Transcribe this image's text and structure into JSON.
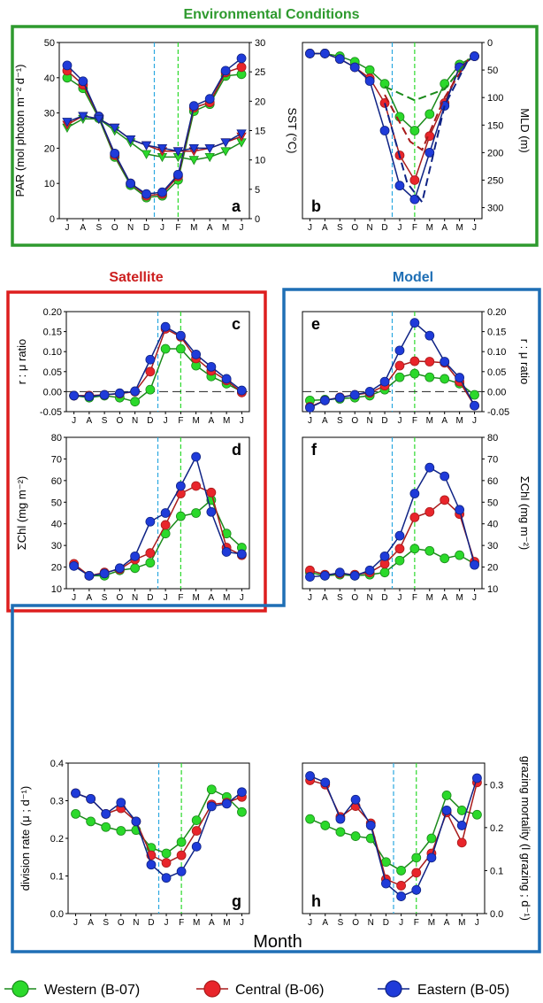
{
  "section_titles": {
    "environmental": "Environmental Conditions",
    "satellite": "Satellite",
    "model": "Model"
  },
  "month_labels": [
    "J",
    "A",
    "S",
    "O",
    "N",
    "D",
    "J",
    "F",
    "M",
    "A",
    "M",
    "J"
  ],
  "x_axis_label": "Month",
  "legend": [
    {
      "label": "Western (B-07)",
      "color": "#2bd92b"
    },
    {
      "label": "Central (B-06)",
      "color": "#e8252b"
    },
    {
      "label": "Eastern (B-05)",
      "color": "#1f3bd9"
    }
  ],
  "colors": {
    "western": "#2bd92b",
    "central": "#e8252b",
    "eastern": "#1f3bd9",
    "western_line": "#1a8a1a",
    "central_line": "#a81a1a",
    "eastern_line": "#0f2385",
    "environmental_frame": "#2e9a2e",
    "satellite_frame": "#dd1e1e",
    "model_frame": "#1f6fb5",
    "dec_line": "#2aa8e0",
    "feb_line": "#2bd92b"
  },
  "chart_data": [
    {
      "panel": "a",
      "type": "line",
      "ylabel_left": "PAR (mol photon m⁻² d⁻¹)",
      "ylabel_right": "SST (°C)",
      "ylim": [
        0,
        50
      ],
      "yticks": [
        0,
        10,
        20,
        30,
        40,
        50
      ],
      "ylim_right": [
        0,
        30
      ],
      "yticks_right": [
        0,
        5,
        10,
        15,
        20,
        25,
        30
      ],
      "x": [
        1,
        2,
        3,
        4,
        5,
        6,
        7,
        8,
        9,
        10,
        11,
        12
      ],
      "series": [
        {
          "name": "Western (B-07)",
          "quantity": "PAR",
          "values": [
            40,
            37,
            28.5,
            17.5,
            9.5,
            6,
            6.5,
            11,
            30.5,
            32.5,
            40.5,
            41
          ]
        },
        {
          "name": "Central (B-06)",
          "quantity": "PAR",
          "values": [
            42,
            38,
            29,
            18,
            10,
            6.5,
            7,
            12,
            31.5,
            33,
            41.5,
            43
          ]
        },
        {
          "name": "Eastern (B-05)",
          "quantity": "PAR",
          "values": [
            43.5,
            39,
            29,
            18.5,
            10,
            7,
            7.5,
            12.5,
            32,
            34,
            42,
            45.5
          ]
        },
        {
          "name": "Western (B-07)",
          "quantity": "SST",
          "values": [
            15.5,
            17,
            17,
            15,
            13,
            11,
            10.5,
            10.5,
            10,
            10.5,
            11.5,
            13
          ]
        },
        {
          "name": "Central (B-06)",
          "quantity": "SST",
          "values": [
            16,
            17.5,
            17,
            15.5,
            13.5,
            12.5,
            11.5,
            11.5,
            11.5,
            12,
            13,
            14
          ]
        },
        {
          "name": "Eastern (B-05)",
          "quantity": "SST",
          "values": [
            16.5,
            17.5,
            17,
            15.5,
            13.5,
            12.5,
            12,
            11.5,
            12,
            12,
            13,
            14.5
          ]
        }
      ]
    },
    {
      "panel": "b",
      "type": "line",
      "ylabel_right": "MLD (m)",
      "ylim": [
        0,
        320
      ],
      "inverted": true,
      "yticks_right": [
        0,
        50,
        100,
        150,
        200,
        250,
        300
      ],
      "x": [
        1,
        2,
        3,
        4,
        5,
        6,
        7,
        8,
        9,
        10,
        11,
        12
      ],
      "series": [
        {
          "name": "Western (B-07)",
          "values": [
            20,
            20,
            25,
            35,
            50,
            75,
            135,
            160,
            130,
            75,
            40,
            25
          ]
        },
        {
          "name": "Central (B-06)",
          "values": [
            20,
            20,
            30,
            45,
            65,
            110,
            205,
            250,
            170,
            110,
            45,
            25
          ]
        },
        {
          "name": "Eastern (B-05)",
          "values": [
            20,
            20,
            30,
            45,
            70,
            160,
            260,
            285,
            200,
            115,
            45,
            25
          ]
        }
      ],
      "dashed_series": [
        {
          "name": "Western (B-07)",
          "x": [
            6,
            8,
            10,
            11.6
          ],
          "values": [
            80,
            105,
            85,
            30
          ]
        },
        {
          "name": "Central (B-06)",
          "x": [
            6,
            7.7,
            8.5,
            10,
            11.6
          ],
          "values": [
            95,
            180,
            195,
            100,
            30
          ]
        },
        {
          "name": "Eastern (B-05)",
          "x": [
            6,
            7.5,
            8.5,
            10,
            11.6
          ],
          "values": [
            110,
            255,
            290,
            115,
            30
          ]
        }
      ]
    },
    {
      "panel": "c",
      "type": "line",
      "ylabel_left": "r : μ ratio",
      "ylim": [
        -0.05,
        0.2
      ],
      "yticks": [
        -0.05,
        0,
        0.05,
        0.1,
        0.15,
        0.2
      ],
      "x": [
        1,
        2,
        3,
        4,
        5,
        6,
        7,
        8,
        9,
        10,
        11,
        12
      ],
      "series": [
        {
          "name": "Western (B-07)",
          "values": [
            -0.01,
            -0.015,
            -0.01,
            -0.015,
            -0.025,
            0.005,
            0.107,
            0.107,
            0.065,
            0.038,
            0.02,
            0.0
          ]
        },
        {
          "name": "Central (B-06)",
          "values": [
            -0.01,
            -0.01,
            -0.008,
            -0.005,
            0.0,
            0.05,
            0.157,
            0.137,
            0.083,
            0.052,
            0.028,
            -0.002
          ]
        },
        {
          "name": "Eastern (B-05)",
          "values": [
            -0.01,
            -0.012,
            -0.008,
            -0.004,
            0.001,
            0.08,
            0.162,
            0.14,
            0.093,
            0.062,
            0.032,
            0.003
          ]
        }
      ]
    },
    {
      "panel": "d",
      "type": "line",
      "ylabel_left": "ΣChl (mg m⁻²)",
      "ylim": [
        10,
        80
      ],
      "yticks": [
        10,
        20,
        30,
        40,
        50,
        60,
        70,
        80
      ],
      "x": [
        1,
        2,
        3,
        4,
        5,
        6,
        7,
        8,
        9,
        10,
        11,
        12
      ],
      "series": [
        {
          "name": "Western (B-07)",
          "values": [
            21,
            16,
            16,
            18.5,
            19.5,
            22,
            35.5,
            43.5,
            45,
            51,
            35.5,
            29
          ]
        },
        {
          "name": "Central (B-06)",
          "values": [
            21.5,
            16,
            17.5,
            19,
            23.5,
            26.5,
            39.5,
            54,
            57.5,
            54.5,
            29,
            25.5
          ]
        },
        {
          "name": "Eastern (B-05)",
          "values": [
            20.5,
            16,
            17,
            19.5,
            25,
            41,
            45,
            57.5,
            71,
            45.5,
            27,
            26
          ]
        }
      ]
    },
    {
      "panel": "e",
      "type": "line",
      "ylabel_right": "r : μ ratio",
      "ylim": [
        -0.05,
        0.2
      ],
      "yticks_right": [
        -0.05,
        0,
        0.05,
        0.1,
        0.15,
        0.2
      ],
      "x": [
        1,
        2,
        3,
        4,
        5,
        6,
        7,
        8,
        9,
        10,
        11,
        12
      ],
      "series": [
        {
          "name": "Western (B-07)",
          "values": [
            -0.022,
            -0.02,
            -0.018,
            -0.015,
            -0.01,
            0.005,
            0.036,
            0.045,
            0.036,
            0.032,
            0.02,
            -0.008
          ]
        },
        {
          "name": "Central (B-06)",
          "values": [
            -0.038,
            -0.022,
            -0.014,
            -0.008,
            -0.003,
            0.015,
            0.065,
            0.076,
            0.075,
            0.072,
            0.025,
            -0.035
          ]
        },
        {
          "name": "Eastern (B-05)",
          "values": [
            -0.04,
            -0.022,
            -0.015,
            -0.008,
            0.0,
            0.025,
            0.103,
            0.172,
            0.14,
            0.075,
            0.035,
            -0.035
          ]
        }
      ]
    },
    {
      "panel": "f",
      "type": "line",
      "ylabel_right": "ΣChl (mg m⁻²)",
      "ylim": [
        10,
        80
      ],
      "yticks_right": [
        10,
        20,
        30,
        40,
        50,
        60,
        70,
        80
      ],
      "x": [
        1,
        2,
        3,
        4,
        5,
        6,
        7,
        8,
        9,
        10,
        11,
        12
      ],
      "series": [
        {
          "name": "Western (B-07)",
          "values": [
            17.5,
            16,
            16.5,
            16,
            16.5,
            17.5,
            23,
            28.5,
            27.5,
            24,
            25.5,
            21.5
          ]
        },
        {
          "name": "Central (B-06)",
          "values": [
            18.5,
            16.5,
            17,
            16.5,
            17.5,
            21.5,
            28.5,
            43,
            45.5,
            51,
            44.5,
            22.5
          ]
        },
        {
          "name": "Eastern (B-05)",
          "values": [
            15.5,
            16,
            17.5,
            16,
            18.5,
            25,
            34.5,
            54,
            66,
            62,
            46.5,
            21
          ]
        }
      ]
    },
    {
      "panel": "g",
      "type": "line",
      "ylabel_left": "division rate (μ ; d⁻¹)",
      "ylim": [
        0,
        0.4
      ],
      "yticks": [
        0.0,
        0.1,
        0.2,
        0.3,
        0.4
      ],
      "x": [
        1,
        2,
        3,
        4,
        5,
        6,
        7,
        8,
        9,
        10,
        11,
        12
      ],
      "series": [
        {
          "name": "Western (B-07)",
          "values": [
            0.265,
            0.245,
            0.23,
            0.22,
            0.222,
            0.175,
            0.16,
            0.19,
            0.248,
            0.33,
            0.31,
            0.27
          ]
        },
        {
          "name": "Central (B-06)",
          "values": [
            0.32,
            0.305,
            0.265,
            0.28,
            0.245,
            0.155,
            0.135,
            0.155,
            0.22,
            0.29,
            0.295,
            0.31
          ]
        },
        {
          "name": "Eastern (B-05)",
          "values": [
            0.32,
            0.305,
            0.265,
            0.295,
            0.245,
            0.13,
            0.095,
            0.112,
            0.178,
            0.285,
            0.292,
            0.323
          ]
        }
      ]
    },
    {
      "panel": "h",
      "type": "line",
      "ylabel_right": "grazing mortality (l grazing ; d⁻¹)",
      "ylim": [
        0,
        0.35
      ],
      "yticks_right": [
        0.0,
        0.1,
        0.2,
        0.3
      ],
      "x": [
        1,
        2,
        3,
        4,
        5,
        6,
        7,
        8,
        9,
        10,
        11,
        12
      ],
      "series": [
        {
          "name": "Western (B-07)",
          "values": [
            0.22,
            0.205,
            0.19,
            0.18,
            0.175,
            0.12,
            0.1,
            0.13,
            0.175,
            0.275,
            0.24,
            0.23
          ]
        },
        {
          "name": "Central (B-06)",
          "values": [
            0.31,
            0.3,
            0.225,
            0.25,
            0.21,
            0.08,
            0.065,
            0.095,
            0.14,
            0.235,
            0.165,
            0.305
          ]
        },
        {
          "name": "Eastern (B-05)",
          "values": [
            0.32,
            0.305,
            0.22,
            0.265,
            0.205,
            0.07,
            0.04,
            0.055,
            0.13,
            0.24,
            0.205,
            0.315
          ]
        }
      ]
    }
  ]
}
